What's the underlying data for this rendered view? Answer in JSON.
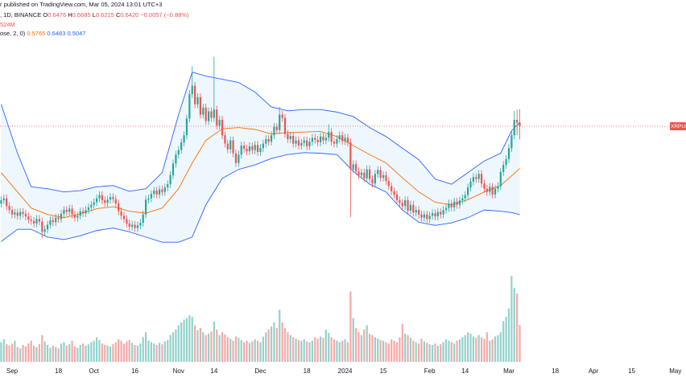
{
  "chart_data": {
    "type": "candlestick",
    "legend_header": {
      "source": "r published on TradingView.com, Mar 05, 2024 13:01 UTC+3",
      "symbol": ", 1D, BINANCE",
      "ohlc": [
        {
          "label": "O",
          "value": "0.6476"
        },
        {
          "label": "H",
          "value": "0.6685"
        },
        {
          "label": "L",
          "value": "0.6215"
        },
        {
          "label": "C",
          "value": "0.6420"
        }
      ],
      "change": "−0.0057 (−0.88%)",
      "volume_label": "524M",
      "bb_label": "ose, 2, 0)",
      "bb_values": [
        "0.5765",
        "0.6483",
        "0.5047"
      ]
    },
    "last_price_label": "XRPUS",
    "xlim": [
      -4.42,
      246.9
    ],
    "ylim": [
      0.426,
      0.838
    ],
    "volume_lim": [
      0,
      1370
    ],
    "xticks": [
      {
        "value": 0,
        "label": "Sep"
      },
      {
        "value": 17,
        "label": "18"
      },
      {
        "value": 30,
        "label": "Oct"
      },
      {
        "value": 45,
        "label": "16"
      },
      {
        "value": 61,
        "label": "Nov"
      },
      {
        "value": 74,
        "label": "14"
      },
      {
        "value": 91,
        "label": "Dec"
      },
      {
        "value": 108,
        "label": "18"
      },
      {
        "value": 122,
        "label": "2024"
      },
      {
        "value": 136,
        "label": "15"
      },
      {
        "value": 153,
        "label": "Feb"
      },
      {
        "value": 166,
        "label": "14"
      },
      {
        "value": 182,
        "label": "Mar"
      },
      {
        "value": 199,
        "label": "18"
      },
      {
        "value": 213,
        "label": "Apr"
      },
      {
        "value": 227,
        "label": "15"
      },
      {
        "value": 243,
        "label": "May"
      }
    ],
    "up_color": "#26a69a",
    "down_color": "#ef5350",
    "volume_up_color": "#92d2cc",
    "volume_down_color": "#f7a9a7",
    "x": [
      -4,
      -3,
      -2,
      -1,
      0,
      1,
      2,
      3,
      4,
      5,
      6,
      7,
      8,
      9,
      10,
      11,
      12,
      13,
      14,
      15,
      16,
      17,
      18,
      19,
      20,
      21,
      22,
      23,
      24,
      25,
      26,
      27,
      28,
      29,
      30,
      31,
      32,
      33,
      34,
      35,
      36,
      37,
      38,
      39,
      40,
      41,
      42,
      43,
      44,
      45,
      46,
      47,
      48,
      49,
      50,
      51,
      52,
      53,
      54,
      55,
      56,
      57,
      58,
      59,
      60,
      61,
      62,
      63,
      64,
      65,
      66,
      67,
      68,
      69,
      70,
      71,
      72,
      73,
      74,
      75,
      76,
      77,
      78,
      79,
      80,
      81,
      82,
      83,
      84,
      85,
      86,
      87,
      88,
      89,
      90,
      91,
      92,
      93,
      94,
      95,
      96,
      97,
      98,
      99,
      100,
      101,
      102,
      103,
      104,
      105,
      106,
      107,
      108,
      109,
      110,
      111,
      112,
      113,
      114,
      115,
      116,
      117,
      118,
      119,
      120,
      121,
      122,
      123,
      124,
      125,
      126,
      127,
      128,
      129,
      130,
      131,
      132,
      133,
      134,
      135,
      136,
      137,
      138,
      139,
      140,
      141,
      142,
      143,
      144,
      145,
      146,
      147,
      148,
      149,
      150,
      151,
      152,
      153,
      154,
      155,
      156,
      157,
      158,
      159,
      160,
      161,
      162,
      163,
      164,
      165,
      166,
      167,
      168,
      169,
      170,
      171,
      172,
      173,
      174,
      175,
      176,
      177,
      178,
      179,
      180,
      181,
      182,
      183,
      184,
      185,
      186
    ],
    "open": [
      0.522,
      0.527,
      0.53,
      0.518,
      0.512,
      0.505,
      0.508,
      0.503,
      0.509,
      0.506,
      0.502,
      0.497,
      0.495,
      0.491,
      0.498,
      0.494,
      0.478,
      0.482,
      0.489,
      0.496,
      0.493,
      0.5,
      0.498,
      0.506,
      0.512,
      0.509,
      0.514,
      0.505,
      0.5,
      0.503,
      0.51,
      0.507,
      0.512,
      0.516,
      0.52,
      0.524,
      0.53,
      0.535,
      0.527,
      0.523,
      0.528,
      0.532,
      0.529,
      0.522,
      0.51,
      0.503,
      0.498,
      0.491,
      0.486,
      0.489,
      0.484,
      0.488,
      0.492,
      0.505,
      0.528,
      0.53,
      0.537,
      0.542,
      0.536,
      0.544,
      0.54,
      0.547,
      0.552,
      0.566,
      0.584,
      0.598,
      0.605,
      0.617,
      0.628,
      0.654,
      0.692,
      0.705,
      0.676,
      0.687,
      0.66,
      0.671,
      0.65,
      0.665,
      0.655,
      0.668,
      0.643,
      0.652,
      0.628,
      0.615,
      0.606,
      0.62,
      0.6,
      0.585,
      0.598,
      0.612,
      0.607,
      0.603,
      0.611,
      0.605,
      0.613,
      0.602,
      0.608,
      0.615,
      0.622,
      0.618,
      0.628,
      0.641,
      0.636,
      0.66,
      0.655,
      0.63,
      0.622,
      0.627,
      0.615,
      0.62,
      0.612,
      0.616,
      0.62,
      0.611,
      0.618,
      0.624,
      0.621,
      0.617,
      0.626,
      0.62,
      0.624,
      0.633,
      0.618,
      0.615,
      0.622,
      0.628,
      0.619,
      0.624,
      0.617,
      0.575,
      0.583,
      0.572,
      0.566,
      0.57,
      0.561,
      0.575,
      0.56,
      0.553,
      0.568,
      0.574,
      0.562,
      0.566,
      0.557,
      0.549,
      0.541,
      0.536,
      0.527,
      0.523,
      0.518,
      0.527,
      0.511,
      0.52,
      0.508,
      0.512,
      0.505,
      0.5,
      0.505,
      0.498,
      0.503,
      0.507,
      0.502,
      0.509,
      0.505,
      0.512,
      0.515,
      0.522,
      0.516,
      0.525,
      0.52,
      0.527,
      0.53,
      0.535,
      0.547,
      0.556,
      0.563,
      0.56,
      0.568,
      0.553,
      0.545,
      0.54,
      0.548,
      0.536,
      0.545,
      0.549,
      0.571,
      0.582,
      0.591,
      0.608,
      0.628,
      0.652,
      0.6476
    ],
    "high": [
      0.533,
      0.536,
      0.536,
      0.524,
      0.518,
      0.514,
      0.514,
      0.515,
      0.515,
      0.512,
      0.508,
      0.503,
      0.501,
      0.504,
      0.504,
      0.5,
      0.488,
      0.495,
      0.502,
      0.502,
      0.506,
      0.506,
      0.512,
      0.518,
      0.518,
      0.52,
      0.52,
      0.511,
      0.509,
      0.516,
      0.516,
      0.518,
      0.522,
      0.526,
      0.53,
      0.536,
      0.541,
      0.541,
      0.533,
      0.534,
      0.538,
      0.538,
      0.535,
      0.528,
      0.516,
      0.509,
      0.504,
      0.497,
      0.495,
      0.495,
      0.494,
      0.498,
      0.511,
      0.534,
      0.536,
      0.543,
      0.548,
      0.548,
      0.55,
      0.55,
      0.553,
      0.558,
      0.572,
      0.59,
      0.604,
      0.611,
      0.623,
      0.634,
      0.66,
      0.698,
      0.735,
      0.711,
      0.693,
      0.693,
      0.677,
      0.677,
      0.671,
      0.671,
      0.75,
      0.674,
      0.658,
      0.658,
      0.634,
      0.621,
      0.626,
      0.626,
      0.606,
      0.604,
      0.618,
      0.618,
      0.613,
      0.617,
      0.617,
      0.619,
      0.619,
      0.614,
      0.621,
      0.628,
      0.628,
      0.634,
      0.647,
      0.647,
      0.672,
      0.666,
      0.661,
      0.636,
      0.633,
      0.633,
      0.626,
      0.626,
      0.622,
      0.626,
      0.626,
      0.624,
      0.63,
      0.63,
      0.627,
      0.632,
      0.632,
      0.63,
      0.645,
      0.639,
      0.624,
      0.628,
      0.634,
      0.634,
      0.63,
      0.63,
      0.623,
      0.589,
      0.589,
      0.578,
      0.576,
      0.576,
      0.581,
      0.581,
      0.566,
      0.574,
      0.58,
      0.58,
      0.572,
      0.572,
      0.563,
      0.555,
      0.547,
      0.542,
      0.533,
      0.529,
      0.533,
      0.533,
      0.526,
      0.526,
      0.518,
      0.518,
      0.511,
      0.511,
      0.511,
      0.509,
      0.513,
      0.513,
      0.515,
      0.515,
      0.518,
      0.521,
      0.528,
      0.528,
      0.531,
      0.531,
      0.533,
      0.536,
      0.541,
      0.553,
      0.562,
      0.569,
      0.569,
      0.574,
      0.574,
      0.559,
      0.551,
      0.554,
      0.554,
      0.551,
      0.555,
      0.577,
      0.588,
      0.597,
      0.614,
      0.634,
      0.666,
      0.668,
      0.6685
    ],
    "low": [
      0.516,
      0.521,
      0.512,
      0.506,
      0.499,
      0.499,
      0.497,
      0.497,
      0.5,
      0.496,
      0.491,
      0.489,
      0.485,
      0.485,
      0.488,
      0.468,
      0.472,
      0.476,
      0.483,
      0.487,
      0.487,
      0.492,
      0.492,
      0.5,
      0.503,
      0.503,
      0.499,
      0.494,
      0.494,
      0.497,
      0.501,
      0.501,
      0.506,
      0.51,
      0.514,
      0.518,
      0.524,
      0.521,
      0.517,
      0.517,
      0.522,
      0.523,
      0.516,
      0.504,
      0.497,
      0.492,
      0.485,
      0.48,
      0.48,
      0.478,
      0.478,
      0.482,
      0.486,
      0.499,
      0.522,
      0.524,
      0.531,
      0.53,
      0.53,
      0.534,
      0.534,
      0.541,
      0.546,
      0.56,
      0.578,
      0.592,
      0.599,
      0.611,
      0.622,
      0.648,
      0.686,
      0.67,
      0.67,
      0.654,
      0.654,
      0.644,
      0.644,
      0.649,
      0.649,
      0.637,
      0.637,
      0.622,
      0.609,
      0.6,
      0.6,
      0.594,
      0.579,
      0.579,
      0.592,
      0.601,
      0.597,
      0.597,
      0.599,
      0.599,
      0.596,
      0.596,
      0.602,
      0.609,
      0.612,
      0.612,
      0.622,
      0.63,
      0.63,
      0.649,
      0.624,
      0.616,
      0.616,
      0.609,
      0.609,
      0.606,
      0.606,
      0.61,
      0.605,
      0.605,
      0.612,
      0.615,
      0.611,
      0.611,
      0.614,
      0.614,
      0.618,
      0.612,
      0.609,
      0.609,
      0.616,
      0.613,
      0.613,
      0.611,
      0.501,
      0.569,
      0.566,
      0.56,
      0.56,
      0.555,
      0.555,
      0.554,
      0.547,
      0.547,
      0.562,
      0.556,
      0.556,
      0.551,
      0.543,
      0.535,
      0.53,
      0.521,
      0.517,
      0.512,
      0.512,
      0.505,
      0.505,
      0.502,
      0.502,
      0.499,
      0.494,
      0.494,
      0.492,
      0.492,
      0.497,
      0.496,
      0.496,
      0.499,
      0.499,
      0.506,
      0.509,
      0.51,
      0.51,
      0.514,
      0.514,
      0.521,
      0.524,
      0.529,
      0.541,
      0.55,
      0.554,
      0.554,
      0.547,
      0.539,
      0.534,
      0.534,
      0.53,
      0.53,
      0.539,
      0.543,
      0.565,
      0.576,
      0.585,
      0.602,
      0.622,
      0.628,
      0.6215
    ],
    "close": [
      0.527,
      0.53,
      0.518,
      0.512,
      0.505,
      0.508,
      0.503,
      0.509,
      0.506,
      0.502,
      0.497,
      0.495,
      0.491,
      0.498,
      0.494,
      0.478,
      0.482,
      0.489,
      0.496,
      0.493,
      0.5,
      0.498,
      0.506,
      0.512,
      0.509,
      0.514,
      0.505,
      0.5,
      0.503,
      0.51,
      0.507,
      0.512,
      0.516,
      0.52,
      0.524,
      0.53,
      0.535,
      0.527,
      0.523,
      0.528,
      0.532,
      0.529,
      0.522,
      0.51,
      0.503,
      0.498,
      0.491,
      0.486,
      0.489,
      0.484,
      0.488,
      0.492,
      0.505,
      0.528,
      0.53,
      0.537,
      0.542,
      0.536,
      0.544,
      0.54,
      0.547,
      0.552,
      0.566,
      0.584,
      0.598,
      0.605,
      0.617,
      0.628,
      0.654,
      0.692,
      0.705,
      0.676,
      0.687,
      0.66,
      0.671,
      0.65,
      0.665,
      0.655,
      0.668,
      0.643,
      0.652,
      0.628,
      0.615,
      0.606,
      0.62,
      0.6,
      0.585,
      0.598,
      0.612,
      0.607,
      0.603,
      0.611,
      0.605,
      0.613,
      0.602,
      0.608,
      0.615,
      0.622,
      0.618,
      0.628,
      0.641,
      0.636,
      0.66,
      0.655,
      0.63,
      0.622,
      0.627,
      0.615,
      0.62,
      0.612,
      0.616,
      0.62,
      0.611,
      0.618,
      0.624,
      0.621,
      0.617,
      0.626,
      0.62,
      0.624,
      0.633,
      0.618,
      0.615,
      0.622,
      0.628,
      0.619,
      0.624,
      0.617,
      0.575,
      0.583,
      0.572,
      0.566,
      0.57,
      0.561,
      0.575,
      0.56,
      0.553,
      0.568,
      0.574,
      0.562,
      0.566,
      0.557,
      0.549,
      0.541,
      0.536,
      0.527,
      0.523,
      0.518,
      0.527,
      0.511,
      0.52,
      0.508,
      0.512,
      0.505,
      0.5,
      0.505,
      0.498,
      0.503,
      0.507,
      0.502,
      0.509,
      0.505,
      0.512,
      0.515,
      0.522,
      0.516,
      0.525,
      0.52,
      0.527,
      0.53,
      0.535,
      0.547,
      0.556,
      0.563,
      0.56,
      0.568,
      0.553,
      0.545,
      0.54,
      0.548,
      0.536,
      0.545,
      0.549,
      0.571,
      0.582,
      0.591,
      0.608,
      0.628,
      0.652,
      0.6476,
      0.642
    ],
    "volume": [
      280,
      320,
      250,
      230,
      260,
      300,
      210,
      190,
      240,
      220,
      260,
      300,
      230,
      210,
      250,
      380,
      290,
      240,
      200,
      230,
      210,
      190,
      260,
      280,
      230,
      250,
      300,
      220,
      200,
      240,
      260,
      230,
      250,
      280,
      300,
      350,
      310,
      260,
      240,
      230,
      220,
      250,
      280,
      320,
      300,
      260,
      290,
      310,
      270,
      240,
      230,
      260,
      350,
      420,
      300,
      280,
      260,
      240,
      270,
      250,
      290,
      310,
      380,
      420,
      460,
      520,
      560,
      600,
      620,
      660,
      640,
      520,
      450,
      480,
      420,
      380,
      400,
      430,
      570,
      460,
      380,
      420,
      390,
      350,
      330,
      300,
      360,
      340,
      310,
      280,
      300,
      270,
      290,
      320,
      300,
      280,
      360,
      420,
      460,
      500,
      560,
      480,
      740,
      560,
      480,
      420,
      380,
      350,
      330,
      310,
      300,
      320,
      290,
      280,
      300,
      350,
      330,
      360,
      340,
      456,
      410,
      350,
      320,
      300,
      280,
      300,
      320,
      280,
      1000,
      620,
      480,
      420,
      380,
      460,
      520,
      400,
      380,
      350,
      330,
      310,
      300,
      280,
      260,
      320,
      300,
      280,
      350,
      540,
      400,
      380,
      340,
      300,
      280,
      260,
      330,
      290,
      270,
      250,
      240,
      260,
      230,
      250,
      280,
      320,
      300,
      280,
      260,
      300,
      320,
      350,
      380,
      420,
      400,
      360,
      340,
      380,
      350,
      330,
      420,
      300,
      320,
      360,
      380,
      420,
      580,
      640,
      760,
      1220,
      1050,
      970,
      524
    ],
    "bollinger": {
      "x": [
        -4,
        2,
        7,
        13,
        19,
        25,
        31,
        37,
        43,
        49,
        55,
        61,
        66,
        71,
        77,
        83,
        89,
        95,
        101,
        107,
        113,
        119,
        125,
        131,
        137,
        143,
        149,
        155,
        161,
        167,
        173,
        179,
        183,
        186
      ],
      "upper": [
        0.676,
        0.6,
        0.548,
        0.545,
        0.54,
        0.542,
        0.548,
        0.55,
        0.541,
        0.545,
        0.57,
        0.66,
        0.726,
        0.72,
        0.715,
        0.71,
        0.695,
        0.672,
        0.666,
        0.668,
        0.668,
        0.664,
        0.657,
        0.64,
        0.626,
        0.608,
        0.59,
        0.56,
        0.552,
        0.57,
        0.588,
        0.6,
        0.635,
        0.6483
      ],
      "basis": [
        0.57,
        0.54,
        0.515,
        0.505,
        0.5,
        0.506,
        0.514,
        0.517,
        0.51,
        0.507,
        0.515,
        0.545,
        0.585,
        0.62,
        0.638,
        0.64,
        0.637,
        0.63,
        0.632,
        0.633,
        0.634,
        0.626,
        0.612,
        0.598,
        0.585,
        0.562,
        0.54,
        0.524,
        0.52,
        0.528,
        0.54,
        0.55,
        0.565,
        0.5765
      ],
      "lower": [
        0.463,
        0.482,
        0.482,
        0.47,
        0.466,
        0.472,
        0.48,
        0.484,
        0.478,
        0.47,
        0.462,
        0.462,
        0.47,
        0.52,
        0.561,
        0.575,
        0.582,
        0.592,
        0.598,
        0.601,
        0.6,
        0.598,
        0.572,
        0.552,
        0.54,
        0.512,
        0.493,
        0.488,
        0.492,
        0.5,
        0.512,
        0.51,
        0.508,
        0.5047
      ],
      "band_color": "#2962ff",
      "basis_color": "#ff6d00",
      "fill_color": "#2196f3"
    }
  }
}
